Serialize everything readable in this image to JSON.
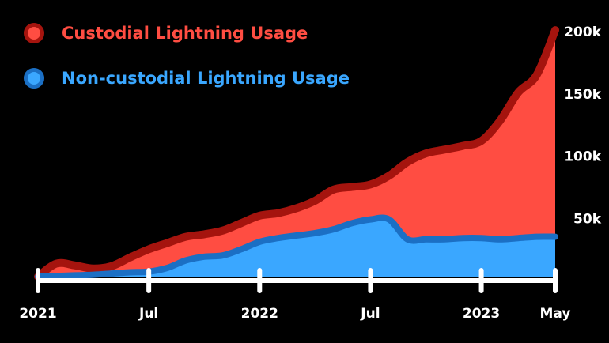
{
  "colors": {
    "background": "#000000",
    "custodial_fill": "#ff4d42",
    "custodial_line": "#a5140e",
    "noncustodial_fill": "#3aa7ff",
    "noncustodial_line": "#1b6fc4",
    "axis": "#ffffff",
    "text": "#ffffff"
  },
  "legend": {
    "custodial": {
      "label": "Custodial Lightning Usage",
      "icon": "red-circle-icon"
    },
    "noncustodial": {
      "label": "Non-custodial Lightning Usage",
      "icon": "blue-circle-icon"
    }
  },
  "chart_data": {
    "type": "area",
    "stacked": true,
    "title": "",
    "xlabel": "",
    "ylabel": "",
    "x_range": [
      0,
      28
    ],
    "ylim": [
      0,
      200000
    ],
    "x_ticks": [
      {
        "x": 0,
        "label": "2021"
      },
      {
        "x": 6,
        "label": "Jul"
      },
      {
        "x": 12,
        "label": "2022"
      },
      {
        "x": 18,
        "label": "Jul"
      },
      {
        "x": 24,
        "label": "2023"
      },
      {
        "x": 28,
        "label": "May"
      }
    ],
    "y_ticks": [
      {
        "value": 50000,
        "label": "50k"
      },
      {
        "value": 100000,
        "label": "100k"
      },
      {
        "value": 150000,
        "label": "150k"
      },
      {
        "value": 200000,
        "label": "200k"
      }
    ],
    "x": [
      0,
      1,
      2,
      3,
      4,
      5,
      6,
      7,
      8,
      9,
      10,
      11,
      12,
      13,
      14,
      15,
      16,
      17,
      18,
      19,
      20,
      21,
      22,
      23,
      24,
      25,
      26,
      27,
      28
    ],
    "series": [
      {
        "name": "Non-custodial Lightning Usage",
        "values": [
          0,
          500,
          1000,
          1500,
          2500,
          3500,
          4000,
          7000,
          13000,
          16000,
          17000,
          22000,
          28000,
          31000,
          33000,
          35000,
          38000,
          43000,
          46000,
          46000,
          30000,
          30000,
          30000,
          31000,
          31000,
          30000,
          31000,
          32000,
          32000
        ]
      },
      {
        "name": "Custodial Lightning Usage",
        "values": [
          0,
          10000,
          8000,
          5000,
          6000,
          12000,
          18000,
          20000,
          19000,
          18000,
          20000,
          21000,
          21000,
          20000,
          22000,
          26000,
          32000,
          29000,
          28000,
          35000,
          62000,
          69000,
          72000,
          74000,
          78000,
          95000,
          117000,
          130000,
          166000
        ]
      }
    ]
  }
}
